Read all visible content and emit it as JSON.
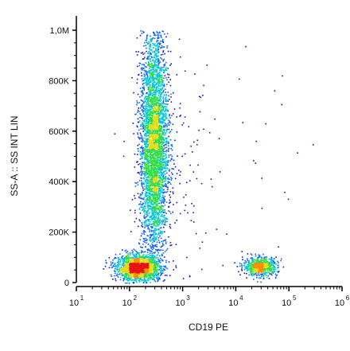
{
  "chart_data": {
    "type": "scatter",
    "plot_style": "density-colored flow cytometry dot plot",
    "xlabel": "CD19 PE",
    "ylabel": "SS-A :: SS INT LIN",
    "x_scale": "log",
    "xlim": [
      10,
      1000000
    ],
    "ylim": [
      0,
      1000000
    ],
    "x_tick_labels": [
      {
        "base": "10",
        "exp": "1",
        "value": 10
      },
      {
        "base": "10",
        "exp": "2",
        "value": 100
      },
      {
        "base": "10",
        "exp": "3",
        "value": 1000
      },
      {
        "base": "10",
        "exp": "4",
        "value": 10000
      },
      {
        "base": "10",
        "exp": "5",
        "value": 100000
      },
      {
        "base": "10",
        "exp": "6",
        "value": 1000000
      }
    ],
    "y_tick_labels": [
      {
        "label": "0",
        "value": 0
      },
      {
        "label": "200K",
        "value": 200000
      },
      {
        "label": "400K",
        "value": 400000
      },
      {
        "label": "600K",
        "value": 600000
      },
      {
        "label": "800K",
        "value": 800000
      },
      {
        "label": "1,0M",
        "value": 1000000
      }
    ],
    "density_colors": [
      "#1414b4",
      "#0a64ff",
      "#00c8d2",
      "#32dc46",
      "#e6dc14",
      "#ff8c00",
      "#e61414"
    ],
    "populations": [
      {
        "x_log10_center": 2.15,
        "y_center": 60000,
        "x_log10_sd": 0.2,
        "y_sd": 25000,
        "count": 1800
      },
      {
        "x_log10_center": 2.45,
        "y_center": 550000,
        "x_log10_sd": 0.13,
        "y_sd": 230000,
        "count": 4000
      },
      {
        "x_log10_center": 4.45,
        "y_center": 65000,
        "x_log10_sd": 0.16,
        "y_sd": 18000,
        "count": 650
      },
      {
        "x_log10_center": 2.9,
        "y_center": 400000,
        "x_log10_sd": 0.4,
        "y_sd": 250000,
        "count": 140
      },
      {
        "x_log10_center": 4.6,
        "y_center": 500000,
        "x_log10_sd": 0.4,
        "y_sd": 250000,
        "count": 20
      }
    ]
  }
}
